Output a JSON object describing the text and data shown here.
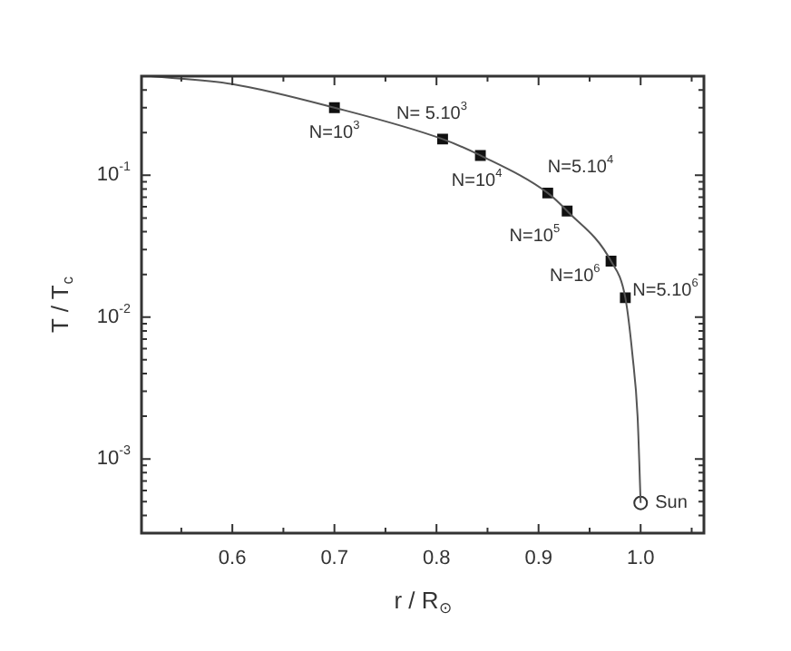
{
  "chart_data": {
    "type": "line",
    "xlabel": "r / R$_{⊙}$",
    "ylabel": "T / T$_{c}$",
    "log": "y",
    "xlim": [
      0.511,
      1.062
    ],
    "ylim": [
      0.0003,
      0.5
    ],
    "xticks": [
      0.6,
      0.7,
      0.8,
      0.9,
      {
        "value": 1.0,
        "label": "1.0"
      },
      {
        "value": 0.55,
        "label": null
      },
      {
        "value": 0.65,
        "label": null
      },
      {
        "value": 0.75,
        "label": null
      },
      {
        "value": 0.85,
        "label": null
      },
      {
        "value": 0.95,
        "label": null
      },
      {
        "value": 1.05,
        "label": null
      }
    ],
    "yticks": [
      {
        "value": 0.001,
        "label": "10$^{-3}$"
      },
      {
        "value": 0.01,
        "label": "10$^{-2}$"
      },
      {
        "value": 0.1,
        "label": "10$^{-1}$"
      },
      {
        "value": 0.0004,
        "label": null
      },
      {
        "value": 0.0005,
        "label": null
      },
      {
        "value": 0.0006,
        "label": null
      },
      {
        "value": 0.0007,
        "label": null
      },
      {
        "value": 0.0008,
        "label": null
      },
      {
        "value": 0.0009,
        "label": null
      },
      {
        "value": 0.002,
        "label": null
      },
      {
        "value": 0.003,
        "label": null
      },
      {
        "value": 0.004,
        "label": null
      },
      {
        "value": 0.005,
        "label": null
      },
      {
        "value": 0.006,
        "label": null
      },
      {
        "value": 0.007,
        "label": null
      },
      {
        "value": 0.008,
        "label": null
      },
      {
        "value": 0.009,
        "label": null
      },
      {
        "value": 0.02,
        "label": null
      },
      {
        "value": 0.03,
        "label": null
      },
      {
        "value": 0.04,
        "label": null
      },
      {
        "value": 0.05,
        "label": null
      },
      {
        "value": 0.06,
        "label": null
      },
      {
        "value": 0.07,
        "label": null
      },
      {
        "value": 0.08,
        "label": null
      },
      {
        "value": 0.09,
        "label": null
      },
      {
        "value": 0.2,
        "label": null
      },
      {
        "value": 0.3,
        "label": null
      },
      {
        "value": 0.4,
        "label": null
      },
      {
        "value": 0.5,
        "label": null
      }
    ],
    "grid": false,
    "legend": false,
    "series": [
      {
        "color": "#555555",
        "marker": "none",
        "x": [
          0.52,
          0.6,
          0.7,
          0.806,
          0.843,
          0.909,
          0.928,
          0.971,
          0.985,
          0.992,
          0.997,
          1.0
        ],
        "values": [
          0.5,
          0.44,
          0.3,
          0.18,
          0.138,
          0.075,
          0.056,
          0.0248,
          0.0137,
          0.0054,
          0.002,
          0.00049
        ]
      },
      {
        "type": "scatter",
        "color": "#111111",
        "marker": "square",
        "x": [
          0.7,
          0.806,
          0.843,
          0.909,
          0.928,
          0.971,
          0.985
        ],
        "values": [
          0.3,
          0.18,
          0.138,
          0.075,
          0.056,
          0.0248,
          0.0137
        ]
      },
      {
        "type": "scatter",
        "color": "#333333",
        "marker": "circle",
        "x": [
          1.0
        ],
        "values": [
          0.00049
        ]
      }
    ],
    "annotations": [
      {
        "text": "N=10$^{3}$",
        "x": 0.7,
        "y": 0.3
      },
      {
        "text": "N= 5.10$^{3}$",
        "x": 0.806,
        "y": 0.18
      },
      {
        "text": "N=10$^{4}$",
        "x": 0.843,
        "y": 0.138
      },
      {
        "text": "N=5.10$^{4}$",
        "x": 0.909,
        "y": 0.075
      },
      {
        "text": "N=10$^{5}$",
        "x": 0.928,
        "y": 0.056
      },
      {
        "text": "N=10$^{6}$",
        "x": 0.971,
        "y": 0.0248
      },
      {
        "text": "N=5.10$^{6}$",
        "x": 0.985,
        "y": 0.0137
      },
      {
        "text": "Sun",
        "x": 1.0,
        "y": 0.00049
      }
    ]
  }
}
